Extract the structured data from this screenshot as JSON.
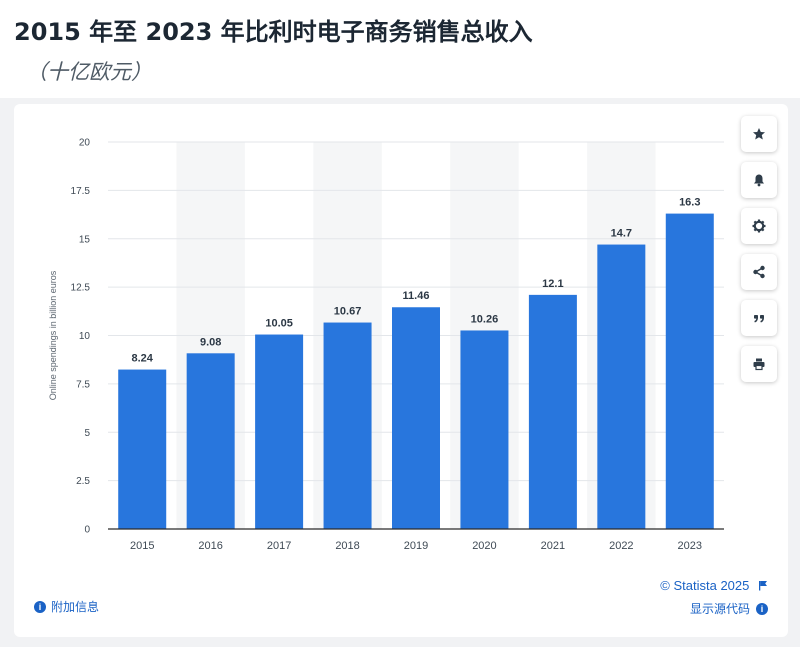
{
  "header": {
    "title": "2015 年至 2023 年比利时电子商务销售总收入",
    "subtitle": "（十亿欧元）"
  },
  "footer": {
    "statista": "© Statista 2025",
    "source_label": "显示源代码",
    "more_info_label": "附加信息"
  },
  "tools": [
    "star-icon",
    "bell-icon",
    "gear-icon",
    "share-icon",
    "quote-icon",
    "print-icon"
  ],
  "chart_data": {
    "type": "bar",
    "categories": [
      "2015",
      "2016",
      "2017",
      "2018",
      "2019",
      "2020",
      "2021",
      "2022",
      "2023"
    ],
    "values": [
      8.24,
      9.08,
      10.05,
      10.67,
      11.46,
      10.26,
      12.1,
      14.7,
      16.3
    ],
    "data_labels": [
      "8.24",
      "9.08",
      "10.05",
      "10.67",
      "11.46",
      "10.26",
      "12.1",
      "14.7",
      "16.3"
    ],
    "ylabel": "Online spendings in billion euros",
    "ylim": [
      0,
      20
    ],
    "yticks": [
      "0",
      "2.5",
      "5",
      "7.5",
      "10",
      "12.5",
      "15",
      "17.5",
      "20"
    ],
    "bar_color": "#2876dd",
    "grid": true
  }
}
